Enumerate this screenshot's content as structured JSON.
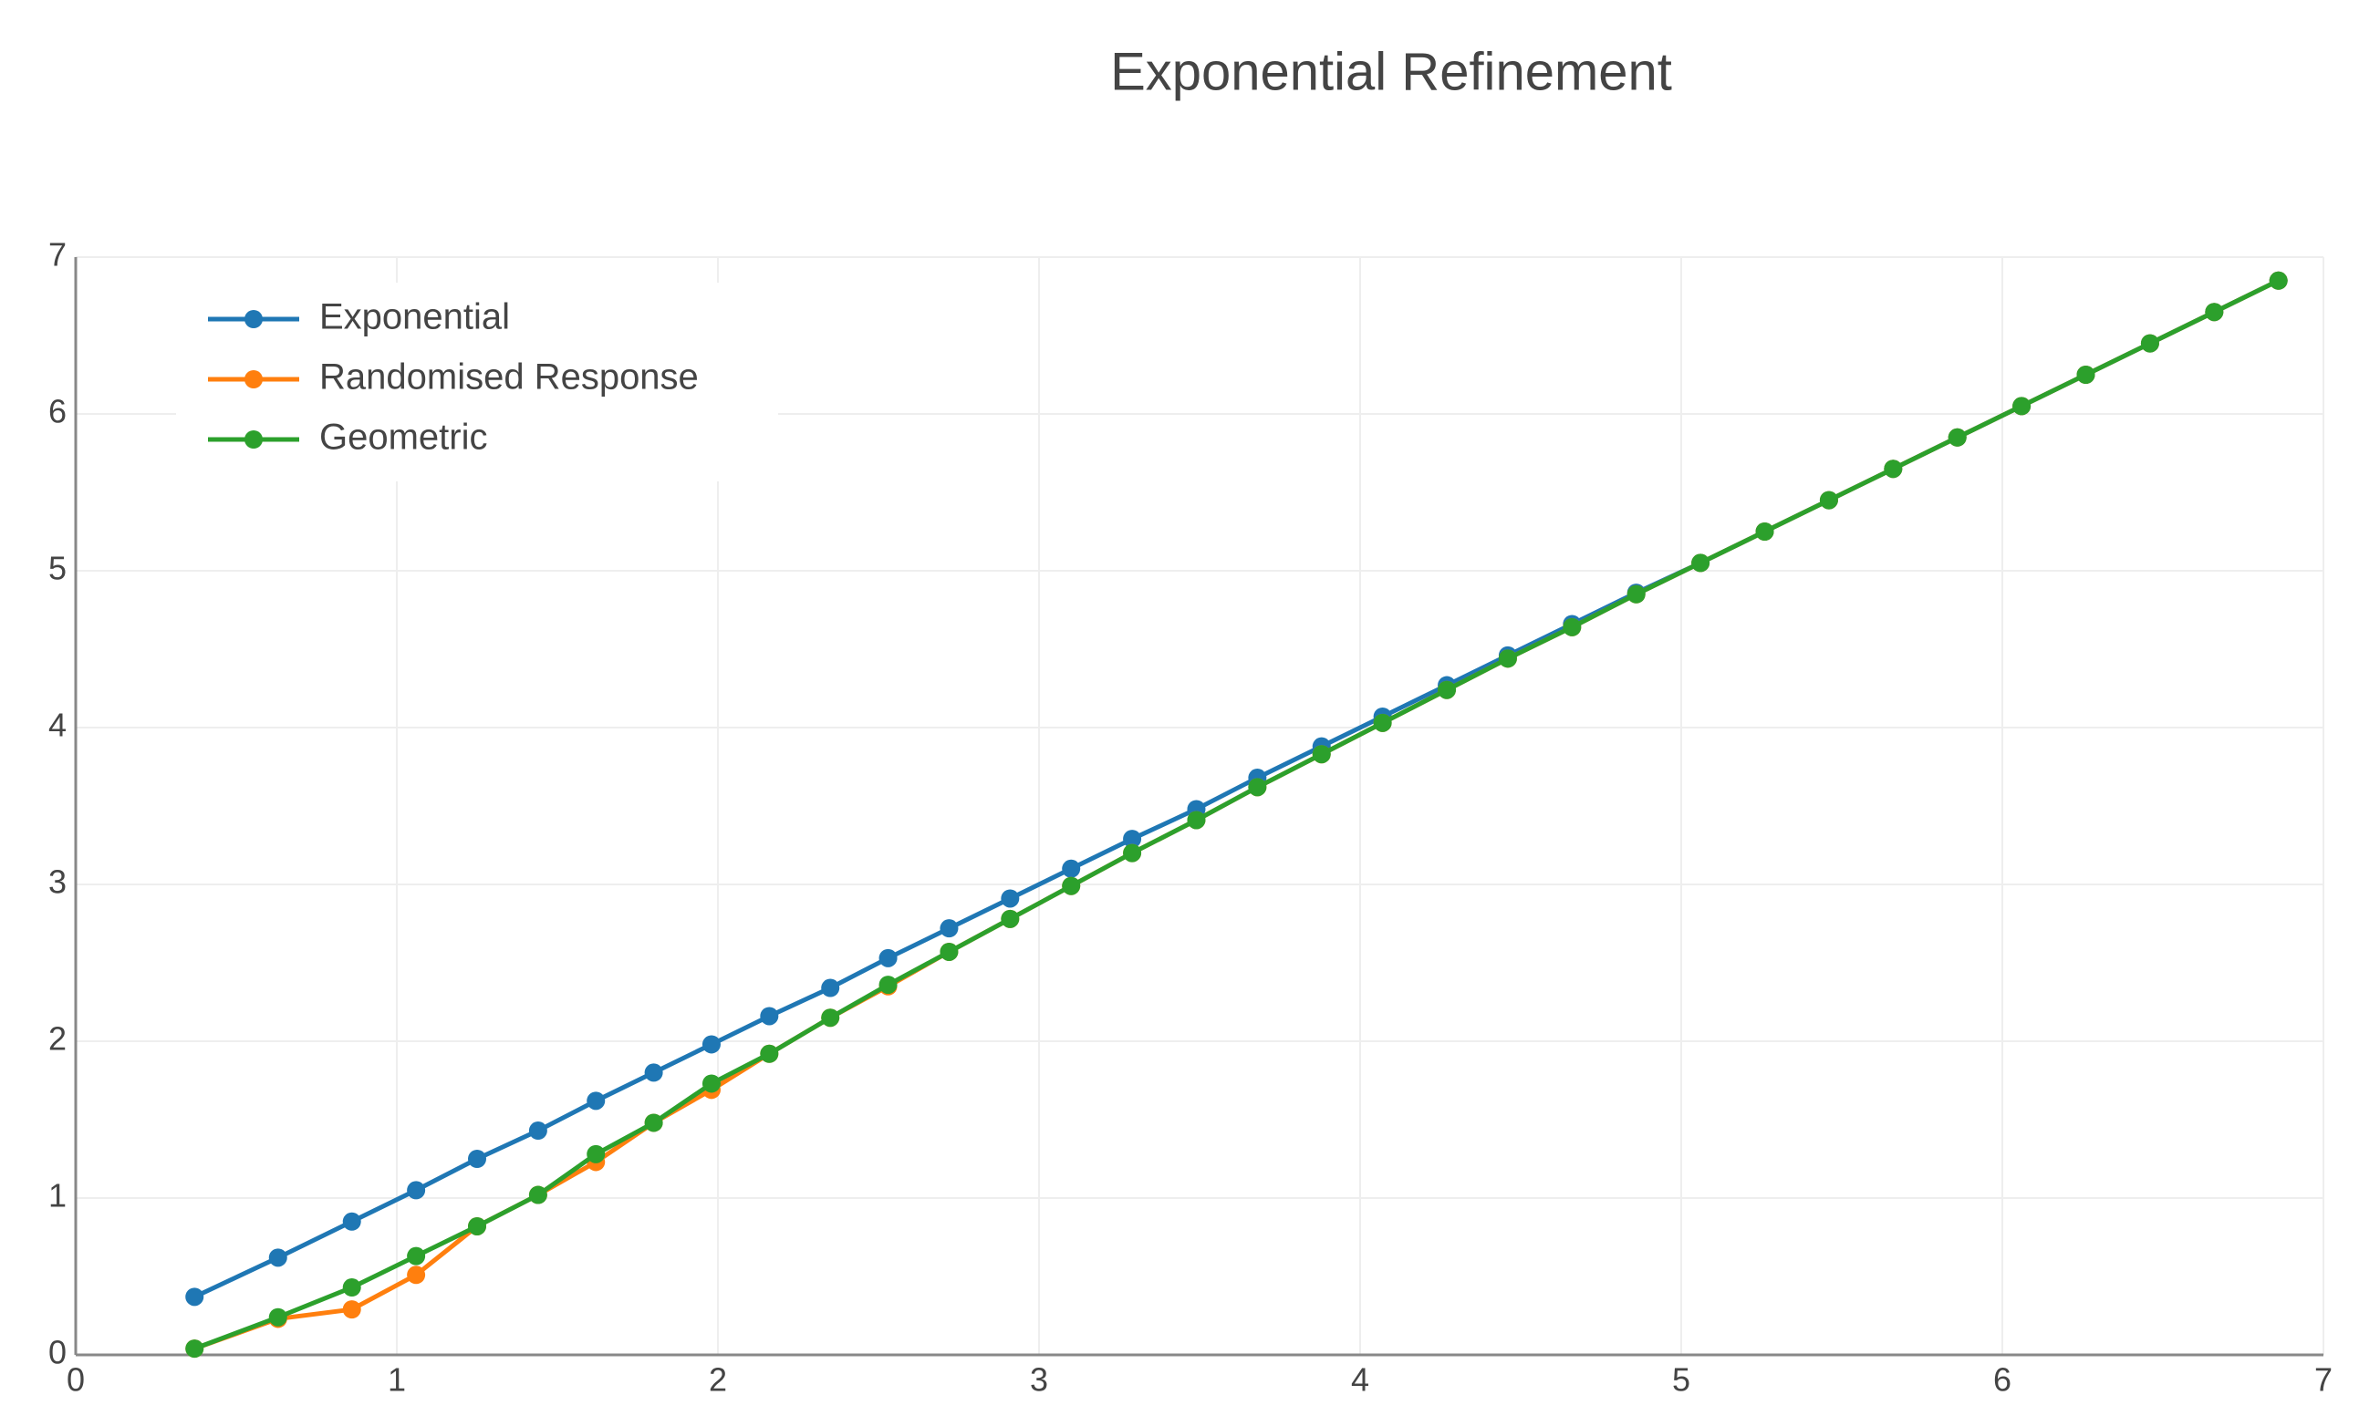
{
  "chart_data": {
    "type": "line",
    "title": "Exponential Refinement",
    "x": [
      0.37,
      0.63,
      0.86,
      1.06,
      1.25,
      1.44,
      1.62,
      1.8,
      1.98,
      2.16,
      2.35,
      2.53,
      2.72,
      2.91,
      3.1,
      3.29,
      3.49,
      3.68,
      3.88,
      4.07,
      4.27,
      4.46,
      4.66,
      4.86,
      5.06,
      5.26,
      5.46,
      5.66,
      5.86,
      6.06,
      6.26,
      6.46,
      6.66,
      6.86
    ],
    "series": [
      {
        "name": "Exponential",
        "color": "#1f77b4",
        "values": [
          0.37,
          0.62,
          0.85,
          1.05,
          1.25,
          1.43,
          1.62,
          1.8,
          1.98,
          2.16,
          2.34,
          2.53,
          2.72,
          2.91,
          3.1,
          3.29,
          3.48,
          3.68,
          3.88,
          4.07,
          4.27,
          4.46,
          4.66,
          4.86,
          5.05,
          5.25,
          5.45,
          5.65,
          5.85,
          6.05,
          6.25,
          6.45,
          6.65,
          6.85
        ]
      },
      {
        "name": "Randomised Response",
        "color": "#ff7f0e",
        "values": [
          0.04,
          0.23,
          0.29,
          0.51,
          0.82,
          1.02,
          1.23,
          1.48,
          1.69,
          1.92,
          2.15,
          2.35,
          2.57,
          2.78,
          2.99,
          3.2,
          3.41,
          3.62,
          3.83,
          4.03,
          4.24,
          4.44,
          4.64,
          4.85,
          5.05,
          5.25,
          5.45,
          5.65,
          5.85,
          6.05,
          6.25,
          6.45,
          6.65,
          6.85
        ]
      },
      {
        "name": "Geometric",
        "color": "#2ca02c",
        "values": [
          0.04,
          0.24,
          0.43,
          0.63,
          0.82,
          1.02,
          1.28,
          1.48,
          1.73,
          1.92,
          2.15,
          2.36,
          2.57,
          2.78,
          2.99,
          3.2,
          3.41,
          3.62,
          3.83,
          4.03,
          4.24,
          4.44,
          4.64,
          4.85,
          5.05,
          5.25,
          5.45,
          5.65,
          5.85,
          6.05,
          6.25,
          6.45,
          6.65,
          6.85
        ]
      }
    ],
    "xlim": [
      0,
      7
    ],
    "ylim": [
      0,
      7
    ],
    "xticks": [
      0,
      1,
      2,
      3,
      4,
      5,
      6,
      7
    ],
    "yticks": [
      0,
      1,
      2,
      3,
      4,
      5,
      6,
      7
    ],
    "grid": true,
    "legend": "top-left"
  }
}
